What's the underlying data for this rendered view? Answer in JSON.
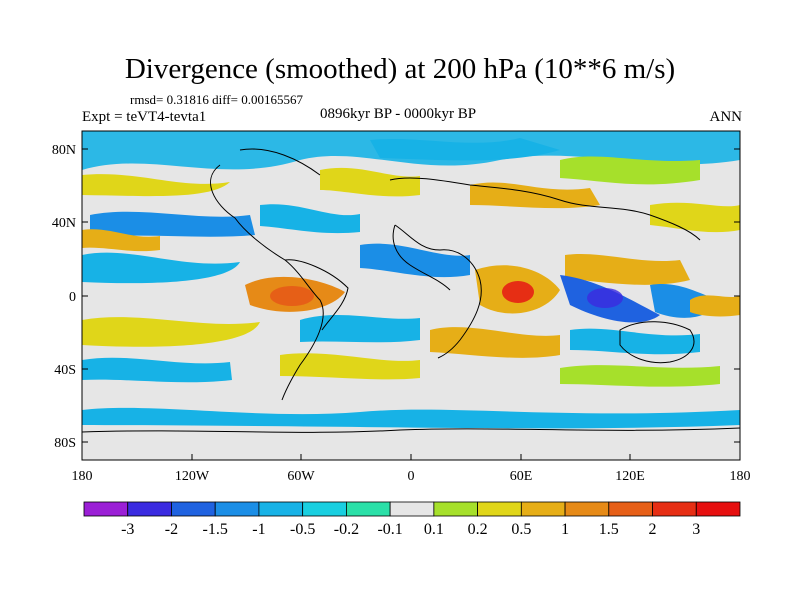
{
  "title": "Divergence (smoothed) at 200 hPa (10**6 m/s)",
  "stats_line": "rmsd= 0.31816 diff= 0.00165567",
  "experiment": "Expt = teVT4-tevta1",
  "period": "0896kyr BP - 0000kyr BP",
  "season": "ANN",
  "map": {
    "lon_range": [
      -180,
      180
    ],
    "lat_range": [
      -90,
      90
    ],
    "lat_ticks": [
      "80N",
      "40N",
      "0",
      "40S",
      "80S"
    ],
    "lon_ticks": [
      "180",
      "120W",
      "60W",
      "0",
      "60E",
      "120E",
      "180"
    ],
    "ocean_color": "#e6e6e6"
  },
  "colorbar": {
    "labels": [
      "-3",
      "-2",
      "-1.5",
      "-1",
      "-0.5",
      "-0.2",
      "-0.1",
      "0.1",
      "0.2",
      "0.5",
      "1",
      "1.5",
      "2",
      "3"
    ],
    "colors": [
      "#9b1fd6",
      "#3b2be0",
      "#1f62e0",
      "#1b8ee6",
      "#17b2e6",
      "#19cfe0",
      "#2be0a8",
      "#e6e6e6",
      "#a6e02b",
      "#e0d619",
      "#e6ae17",
      "#e68a17",
      "#e65f17",
      "#e62e14",
      "#e60f0f"
    ]
  },
  "field_colors": {
    "strong_neg": "#1f62e0",
    "neg": "#1b8ee6",
    "weak_neg": "#17b2e6",
    "faint_neg": "#2be0a8",
    "faint_pos": "#a6e02b",
    "pos": "#e0d619",
    "strong_pos": "#e6ae17",
    "very_pos": "#e68a17",
    "max_pos": "#e65f17"
  }
}
